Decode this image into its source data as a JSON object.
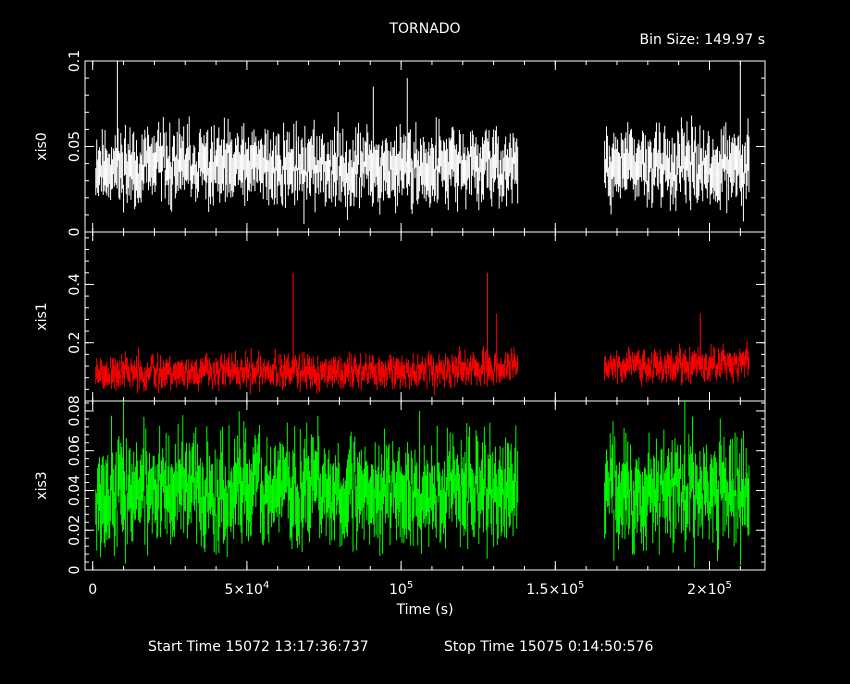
{
  "title": "TORNADO",
  "bin_size": "Bin Size: 149.97 s",
  "x_axis": {
    "label": "Time (s)",
    "ticks": [
      {
        "value": 0,
        "base": "0",
        "exp": ""
      },
      {
        "value": 50000,
        "base": "5×10",
        "exp": "4"
      },
      {
        "value": 100000,
        "base": "10",
        "exp": "5"
      },
      {
        "value": 150000,
        "base": "1.5×10",
        "exp": "5"
      },
      {
        "value": 200000,
        "base": "2×10",
        "exp": "5"
      }
    ]
  },
  "footer": {
    "start": "Start Time 15072 13:17:36:737",
    "stop": "Stop Time 15075  0:14:50:576"
  },
  "chart_data": [
    {
      "type": "scatter",
      "ylabel": "xis0",
      "color": "#ffffff",
      "ylim": [
        0,
        0.1
      ],
      "yticks": [
        {
          "value": 0,
          "label": "0"
        },
        {
          "value": 0.05,
          "label": "0.05"
        },
        {
          "value": 0.1,
          "label": "0.1"
        }
      ],
      "xlim": [
        -2500,
        218000
      ],
      "segments": [
        [
          1000,
          138000
        ],
        [
          166000,
          213000
        ]
      ],
      "mean": 0.038,
      "spread": 0.009,
      "err": 0.012,
      "trend": 0,
      "seed": 11,
      "spikes": [
        [
          8000,
          0.1
        ],
        [
          66000,
          0.065
        ],
        [
          91000,
          0.085
        ],
        [
          102000,
          0.09
        ],
        [
          130000,
          0.06
        ],
        [
          210000,
          0.1
        ]
      ]
    },
    {
      "type": "scatter",
      "ylabel": "xis1",
      "color": "#ff0000",
      "ylim": [
        0,
        0.58
      ],
      "yticks": [
        {
          "value": 0.2,
          "label": "0.2"
        },
        {
          "value": 0.4,
          "label": "0.4"
        }
      ],
      "xlim": [
        -2500,
        218000
      ],
      "segments": [
        [
          1000,
          138000
        ],
        [
          166000,
          213000
        ]
      ],
      "mean": 0.1,
      "spread": 0.025,
      "err": 0.03,
      "trend": 0.05,
      "seed": 23,
      "spikes": [
        [
          65000,
          0.44
        ],
        [
          128000,
          0.44
        ],
        [
          131000,
          0.3
        ],
        [
          197000,
          0.3
        ]
      ]
    },
    {
      "type": "scatter",
      "ylabel": "xis3",
      "color": "#00ff00",
      "ylim": [
        0,
        0.085
      ],
      "yticks": [
        {
          "value": 0,
          "label": "0"
        },
        {
          "value": 0.02,
          "label": "0.02"
        },
        {
          "value": 0.04,
          "label": "0.04"
        },
        {
          "value": 0.06,
          "label": "0.06"
        },
        {
          "value": 0.08,
          "label": "0.08"
        }
      ],
      "xlim": [
        -2500,
        218000
      ],
      "segments": [
        [
          1000,
          138000
        ],
        [
          166000,
          213000
        ]
      ],
      "mean": 0.04,
      "spread": 0.012,
      "err": 0.014,
      "trend": 0,
      "seed": 37,
      "spikes": [
        [
          10000,
          0.085
        ],
        [
          106000,
          0.08
        ],
        [
          192000,
          0.085
        ]
      ]
    }
  ]
}
